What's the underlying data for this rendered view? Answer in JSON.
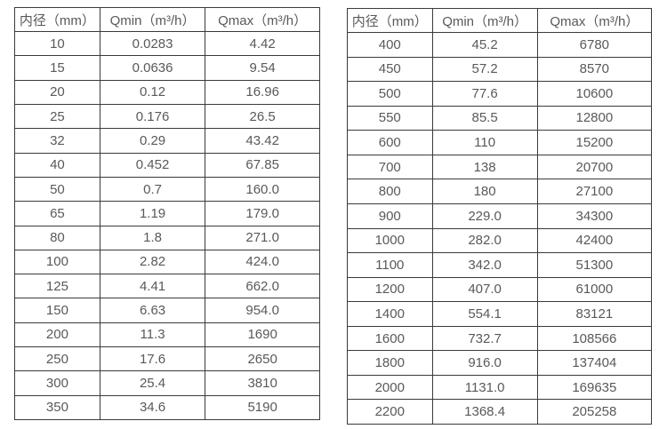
{
  "colors": {
    "background": "#ffffff",
    "border": "#3a3a3a",
    "text": "#595959"
  },
  "tables": [
    {
      "name": "small-diameter-flow-rates",
      "columns": [
        "内径（mm）",
        "Qmin（m³/h）",
        "Qmax（m³/h）"
      ],
      "rows": [
        [
          "10",
          "0.0283",
          "4.42"
        ],
        [
          "15",
          "0.0636",
          "9.54"
        ],
        [
          "20",
          "0.12",
          "16.96"
        ],
        [
          "25",
          "0.176",
          "26.5"
        ],
        [
          "32",
          "0.29",
          "43.42"
        ],
        [
          "40",
          "0.452",
          "67.85"
        ],
        [
          "50",
          "0.7",
          "160.0"
        ],
        [
          "65",
          "1.19",
          "179.0"
        ],
        [
          "80",
          "1.8",
          "271.0"
        ],
        [
          "100",
          "2.82",
          "424.0"
        ],
        [
          "125",
          "4.41",
          "662.0"
        ],
        [
          "150",
          "6.63",
          "954.0"
        ],
        [
          "200",
          "11.3",
          "1690"
        ],
        [
          "250",
          "17.6",
          "2650"
        ],
        [
          "300",
          "25.4",
          "3810"
        ],
        [
          "350",
          "34.6",
          "5190"
        ]
      ]
    },
    {
      "name": "large-diameter-flow-rates",
      "columns": [
        "内径（mm）",
        "Qmin（m³/h）",
        "Qmax（m³/h）"
      ],
      "rows": [
        [
          "400",
          "45.2",
          "6780"
        ],
        [
          "450",
          "57.2",
          "8570"
        ],
        [
          "500",
          "77.6",
          "10600"
        ],
        [
          "550",
          "85.5",
          "12800"
        ],
        [
          "600",
          "110",
          "15200"
        ],
        [
          "700",
          "138",
          "20700"
        ],
        [
          "800",
          "180",
          "27100"
        ],
        [
          "900",
          "229.0",
          "34300"
        ],
        [
          "1000",
          "282.0",
          "42400"
        ],
        [
          "1100",
          "342.0",
          "51300"
        ],
        [
          "1200",
          "407.0",
          "61000"
        ],
        [
          "1400",
          "554.1",
          "83121"
        ],
        [
          "1600",
          "732.7",
          "108566"
        ],
        [
          "1800",
          "916.0",
          "137404"
        ],
        [
          "2000",
          "1131.0",
          "169635"
        ],
        [
          "2200",
          "1368.4",
          "205258"
        ]
      ]
    }
  ]
}
